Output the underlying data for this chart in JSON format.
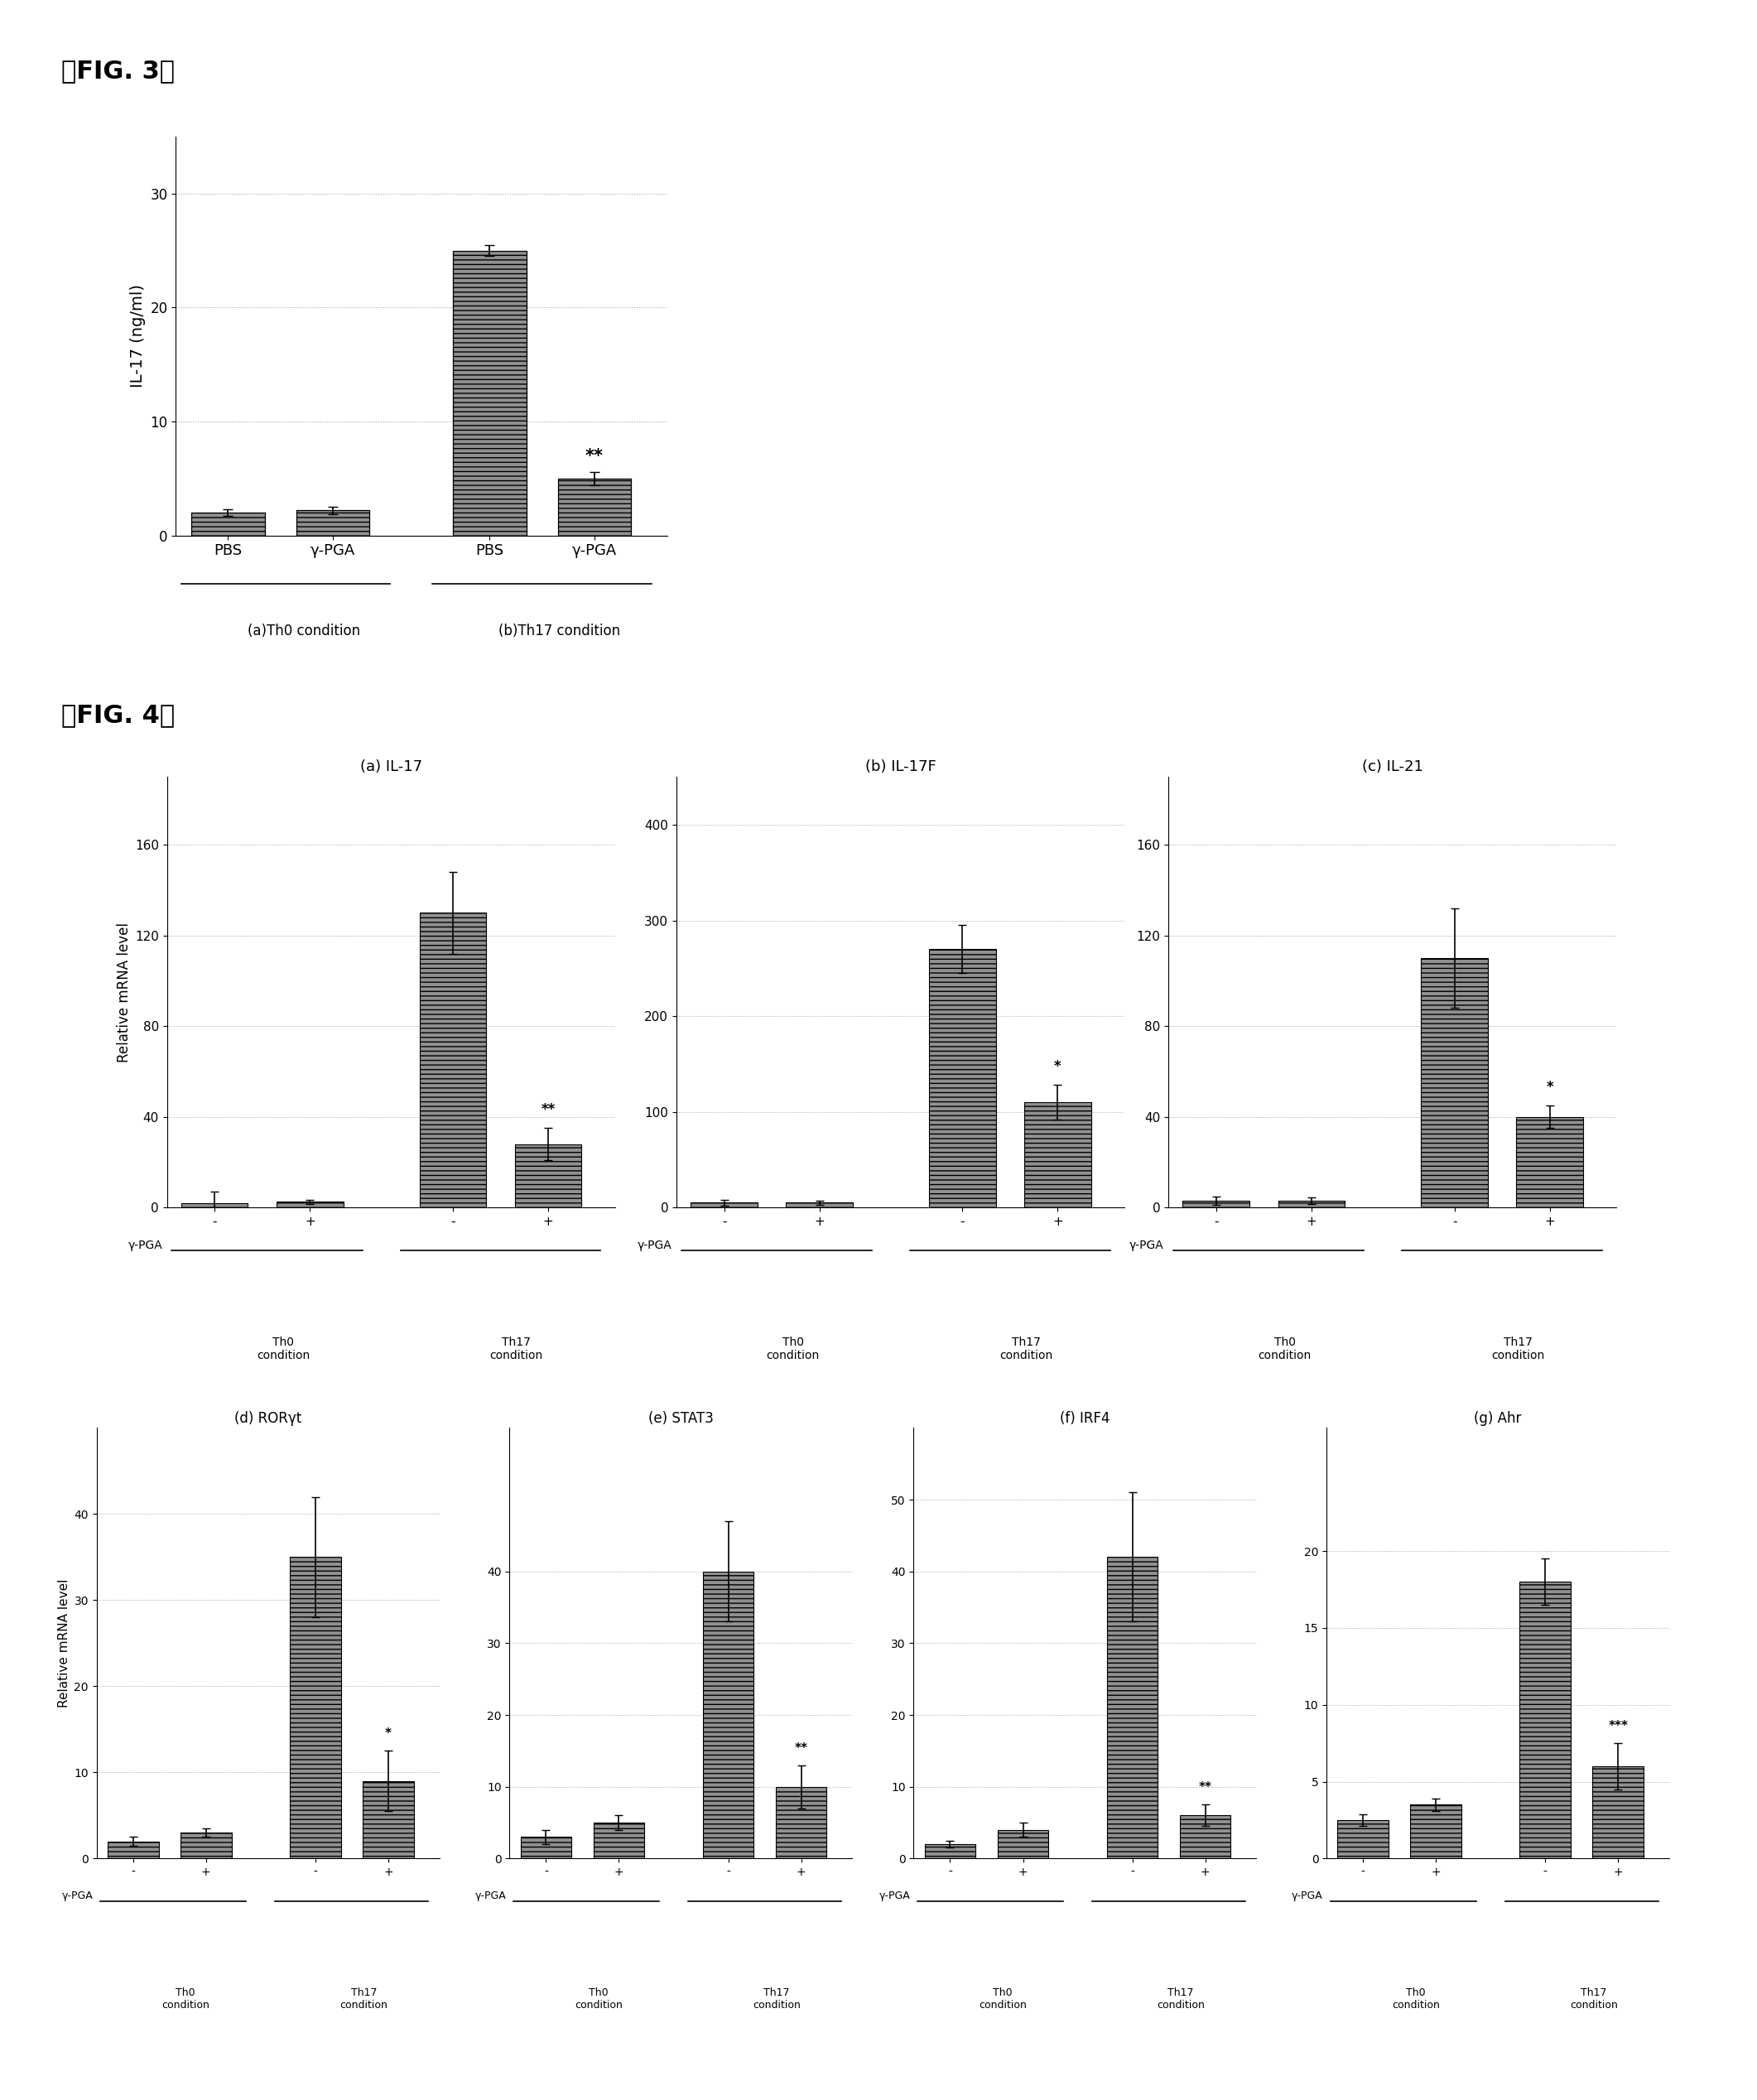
{
  "fig3": {
    "bars": [
      2.0,
      2.2,
      25.0,
      5.0
    ],
    "errors": [
      0.3,
      0.3,
      0.5,
      0.6
    ],
    "xlabels": [
      "PBS",
      "γ-PGA",
      "PBS",
      "γ-PGA"
    ],
    "ylabel": "IL-17 (ng/ml)",
    "ylim": [
      0,
      35
    ],
    "yticks": [
      0,
      10,
      20,
      30
    ],
    "sig_labels": [
      "",
      "",
      "",
      "**"
    ],
    "group_labels": [
      "(a)Th0 condition",
      "(b)Th17 condition"
    ],
    "bar_color": "#909090",
    "hatch": "---"
  },
  "fig4": {
    "row1": [
      {
        "title": "(a) IL-17",
        "values": [
          2.0,
          2.5,
          130.0,
          28.0
        ],
        "errors": [
          5.0,
          1.0,
          18.0,
          7.0
        ],
        "ylim": [
          0,
          190
        ],
        "yticks": [
          0,
          40,
          80,
          120,
          160
        ],
        "sig": [
          "",
          "",
          "",
          "**"
        ]
      },
      {
        "title": "(b) IL-17F",
        "values": [
          5.0,
          5.0,
          270.0,
          110.0
        ],
        "errors": [
          3.0,
          2.0,
          25.0,
          18.0
        ],
        "ylim": [
          0,
          450
        ],
        "yticks": [
          0,
          100,
          200,
          300,
          400
        ],
        "sig": [
          "",
          "",
          "",
          "*"
        ]
      },
      {
        "title": "(c) IL-21",
        "values": [
          3.0,
          3.0,
          110.0,
          40.0
        ],
        "errors": [
          2.0,
          1.5,
          22.0,
          5.0
        ],
        "ylim": [
          0,
          190
        ],
        "yticks": [
          0,
          40,
          80,
          120,
          160
        ],
        "sig": [
          "",
          "",
          "",
          "*"
        ]
      }
    ],
    "row2": [
      {
        "title": "(d) RORγt",
        "values": [
          2.0,
          3.0,
          35.0,
          9.0
        ],
        "errors": [
          0.5,
          0.5,
          7.0,
          3.5
        ],
        "ylim": [
          0,
          50
        ],
        "yticks": [
          0,
          10,
          20,
          30,
          40
        ],
        "sig": [
          "",
          "",
          "",
          "*"
        ]
      },
      {
        "title": "(e) STAT3",
        "values": [
          3.0,
          5.0,
          40.0,
          10.0
        ],
        "errors": [
          1.0,
          1.0,
          7.0,
          3.0
        ],
        "ylim": [
          0,
          60
        ],
        "yticks": [
          0,
          10,
          20,
          30,
          40
        ],
        "sig": [
          "",
          "",
          "",
          "**"
        ]
      },
      {
        "title": "(f) IRF4",
        "values": [
          2.0,
          4.0,
          42.0,
          6.0
        ],
        "errors": [
          0.5,
          1.0,
          9.0,
          1.5
        ],
        "ylim": [
          0,
          60
        ],
        "yticks": [
          0,
          10,
          20,
          30,
          40,
          50
        ],
        "sig": [
          "",
          "",
          "",
          "**"
        ]
      },
      {
        "title": "(g) Ahr",
        "values": [
          2.5,
          3.5,
          18.0,
          6.0
        ],
        "errors": [
          0.4,
          0.4,
          1.5,
          1.5
        ],
        "ylim": [
          0,
          28
        ],
        "yticks": [
          0,
          5,
          10,
          15,
          20
        ],
        "sig": [
          "",
          "",
          "",
          "***"
        ]
      }
    ],
    "ylabel": "Relative mRNA level",
    "bar_color": "#909090",
    "hatch": "---"
  },
  "fig3_label": "[　FIG. 3　]",
  "fig4_label": "[　FIG. 4　]"
}
